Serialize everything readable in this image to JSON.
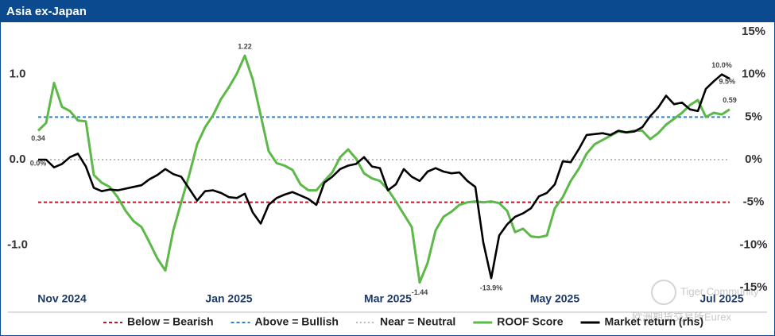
{
  "chart_data": {
    "type": "line",
    "title": "Asia ex-Japan",
    "categories": [
      null,
      null,
      null,
      "Nov 2024",
      null,
      null,
      null,
      null,
      null,
      null,
      null,
      null,
      null,
      null,
      null,
      null,
      null,
      null,
      null,
      null,
      null,
      null,
      null,
      null,
      "Jan 2025",
      null,
      null,
      null,
      null,
      null,
      null,
      null,
      null,
      null,
      null,
      null,
      null,
      null,
      null,
      null,
      null,
      null,
      null,
      null,
      "Mar 2025",
      null,
      null,
      null,
      null,
      null,
      null,
      null,
      null,
      null,
      null,
      null,
      null,
      null,
      null,
      null,
      null,
      null,
      null,
      null,
      null,
      "May 2025",
      null,
      null,
      null,
      null,
      null,
      null,
      null,
      null,
      null,
      null,
      null,
      null,
      null,
      null,
      null,
      null,
      null,
      null,
      null,
      null,
      "Jul 2025",
      null
    ],
    "series": [
      {
        "name": "ROOF Score",
        "color": "#5cb947",
        "axis": "y",
        "values": [
          0.34,
          0.43,
          0.9,
          0.62,
          0.57,
          0.46,
          0.45,
          -0.18,
          -0.27,
          -0.32,
          -0.44,
          -0.6,
          -0.72,
          -0.79,
          -0.97,
          -1.16,
          -1.3,
          -0.83,
          -0.5,
          -0.18,
          0.18,
          0.38,
          0.52,
          0.71,
          0.85,
          1.01,
          1.22,
          0.94,
          0.52,
          0.1,
          -0.04,
          -0.07,
          -0.12,
          -0.29,
          -0.36,
          -0.36,
          -0.25,
          -0.15,
          0.03,
          0.12,
          0.01,
          -0.16,
          -0.22,
          -0.25,
          -0.35,
          -0.49,
          -0.64,
          -0.79,
          -1.44,
          -1.21,
          -0.83,
          -0.67,
          -0.61,
          -0.53,
          -0.5,
          -0.49,
          -0.5,
          -0.49,
          -0.51,
          -0.6,
          -0.85,
          -0.81,
          -0.9,
          -0.91,
          -0.89,
          -0.57,
          -0.44,
          -0.25,
          -0.11,
          0.07,
          0.18,
          0.23,
          0.28,
          0.33,
          0.32,
          0.34,
          0.34,
          0.24,
          0.31,
          0.41,
          0.48,
          0.55,
          0.64,
          0.7,
          0.5,
          0.55,
          0.53,
          0.59
        ],
        "value_labels": [
          "0.34",
          null,
          null,
          null,
          null,
          null,
          null,
          null,
          null,
          null,
          null,
          null,
          null,
          null,
          null,
          null,
          null,
          null,
          null,
          null,
          null,
          null,
          null,
          null,
          null,
          null,
          "1.22",
          null,
          null,
          null,
          null,
          null,
          null,
          null,
          null,
          null,
          null,
          null,
          null,
          null,
          null,
          null,
          null,
          null,
          null,
          null,
          null,
          null,
          "-1.44",
          null,
          null,
          null,
          null,
          null,
          null,
          null,
          null,
          null,
          null,
          null,
          null,
          null,
          null,
          null,
          null,
          null,
          null,
          null,
          null,
          null,
          null,
          null,
          null,
          null,
          null,
          null,
          null,
          null,
          null,
          null,
          null,
          null,
          null,
          null,
          null,
          null,
          null,
          "0.59"
        ]
      },
      {
        "name": "Market return (rhs)",
        "color": "#000000",
        "axis": "y2",
        "values": [
          0.0,
          0.0,
          -0.9,
          -0.5,
          0.3,
          0.7,
          -0.8,
          -3.3,
          -3.7,
          -3.5,
          -3.6,
          -3.4,
          -3.2,
          -3.0,
          -2.3,
          -1.8,
          -1.1,
          -1.7,
          -2.0,
          -3.4,
          -4.8,
          -3.7,
          -3.6,
          -3.9,
          -4.4,
          -4.5,
          -4.0,
          -6.2,
          -7.5,
          -5.3,
          -4.5,
          -4.1,
          -3.8,
          -4.2,
          -4.6,
          -5.3,
          -2.7,
          -2.0,
          -1.1,
          -0.7,
          -0.5,
          0.3,
          -0.8,
          -1.0,
          -3.6,
          -2.9,
          -1.1,
          -2.0,
          -2.5,
          -1.4,
          -1.0,
          -1.4,
          -1.6,
          -1.5,
          -2.5,
          -3.2,
          -9.7,
          -13.9,
          -8.9,
          -7.6,
          -6.7,
          -6.3,
          -5.7,
          -4.3,
          -3.9,
          -2.9,
          -0.2,
          -0.3,
          1.2,
          2.9,
          3.0,
          3.1,
          2.9,
          3.4,
          3.2,
          3.3,
          3.8,
          5.1,
          6.1,
          7.5,
          6.5,
          6.7,
          5.9,
          5.7,
          8.3,
          9.2,
          10.0,
          9.5
        ],
        "value_labels": [
          "0.0%",
          null,
          null,
          null,
          null,
          null,
          null,
          null,
          null,
          null,
          null,
          null,
          null,
          null,
          null,
          null,
          null,
          null,
          null,
          null,
          null,
          null,
          null,
          null,
          null,
          null,
          null,
          null,
          null,
          null,
          null,
          null,
          null,
          null,
          null,
          null,
          null,
          null,
          null,
          null,
          null,
          null,
          null,
          null,
          null,
          null,
          null,
          null,
          null,
          null,
          null,
          null,
          null,
          null,
          null,
          null,
          null,
          "-13.9%",
          null,
          null,
          null,
          null,
          null,
          null,
          null,
          null,
          null,
          null,
          null,
          null,
          null,
          null,
          null,
          null,
          null,
          null,
          null,
          null,
          null,
          null,
          null,
          null,
          null,
          null,
          null,
          null,
          "10.0%",
          "9.5%"
        ]
      }
    ],
    "reference_lines": [
      {
        "name": "Below = Bearish",
        "value": -0.5,
        "color": "#c0142c",
        "style": "dashed"
      },
      {
        "name": "Above = Bullish",
        "value": 0.5,
        "color": "#2f7fd1",
        "style": "dashed"
      },
      {
        "name": "Near = Neutral",
        "value": 0,
        "color": "#bdbdbd",
        "style": "dotted"
      }
    ],
    "ylim": [
      -1.5,
      1.5
    ],
    "yticks": [
      {
        "value": -1,
        "label": "-1.0"
      },
      {
        "value": 0,
        "label": "0.0"
      },
      {
        "value": 1,
        "label": "1.0"
      }
    ],
    "y2lim": [
      -15,
      15
    ],
    "y2ticks": [
      {
        "value": -15,
        "label": "-15%"
      },
      {
        "value": -10,
        "label": "-10%"
      },
      {
        "value": -5,
        "label": "-5%"
      },
      {
        "value": 0,
        "label": "0%"
      },
      {
        "value": 5,
        "label": "5%"
      },
      {
        "value": 10,
        "label": "10%"
      },
      {
        "value": 15,
        "label": "15%"
      }
    ],
    "legend": "bottom",
    "watermark": [
      "Tiger Community",
      "欧洲期货交易所Eurex"
    ]
  }
}
